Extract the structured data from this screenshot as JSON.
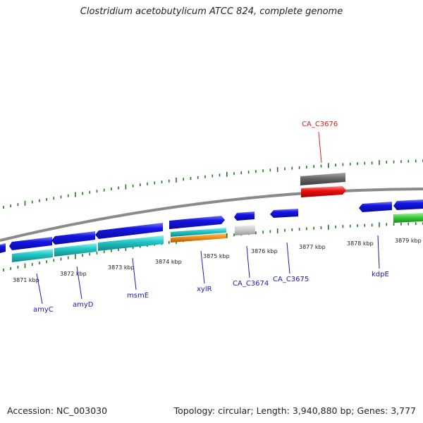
{
  "title": "Clostridium acetobutylicum ATCC 824, complete genome",
  "footer": {
    "accession": "Accession: NC_003030",
    "summary": "Topology: circular; Length: 3,940,880 bp; Genes: 3,777"
  },
  "colors": {
    "backbone": "#8a8a8a",
    "tick": "#1a7a1a",
    "forward_gene": "#1515e6",
    "reverse_cds": "#22c8c8",
    "orange_feature": "#f0901a",
    "highlight_gene": "#ee1111",
    "dark_feature": "#666666",
    "light_feature": "#c8c8c8",
    "green_feature": "#3ccc3c",
    "label_blue": "#1a1ab4",
    "label_red": "#dd2020"
  },
  "ticks": [
    {
      "label": "3871 kbp"
    },
    {
      "label": "3872 kbp"
    },
    {
      "label": "3873 kbp"
    },
    {
      "label": "3874 kbp"
    },
    {
      "label": "3875 kbp"
    },
    {
      "label": "3876 kbp"
    },
    {
      "label": "3877 kbp"
    },
    {
      "label": "3878 kbp"
    },
    {
      "label": "3879 kbp"
    }
  ],
  "gene_labels": [
    {
      "name": "amyC",
      "color": "blue"
    },
    {
      "name": "amyD",
      "color": "blue"
    },
    {
      "name": "msmE",
      "color": "blue"
    },
    {
      "name": "xylR",
      "color": "blue"
    },
    {
      "name": "CA_C3674",
      "color": "blue"
    },
    {
      "name": "CA_C3675",
      "color": "blue"
    },
    {
      "name": "kdpE",
      "color": "blue"
    },
    {
      "name": "CA_C3676",
      "color": "red"
    }
  ]
}
